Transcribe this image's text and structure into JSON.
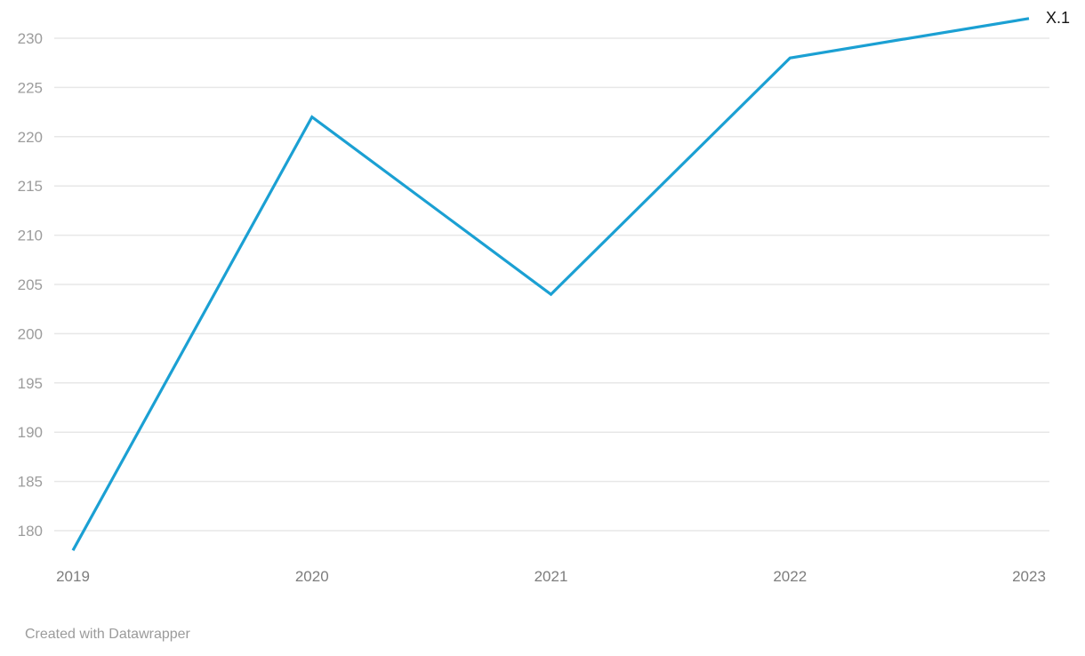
{
  "chart_data": {
    "type": "line",
    "title": "",
    "x": [
      "2019",
      "2020",
      "2021",
      "2022",
      "2023"
    ],
    "series": [
      {
        "name": "X.1",
        "values": [
          178,
          222,
          204,
          228,
          232
        ]
      }
    ],
    "yticks": [
      230,
      225,
      220,
      215,
      210,
      205,
      200,
      195,
      190,
      185,
      180
    ],
    "ylim": [
      177,
      234
    ],
    "grid": "horizontal-only",
    "legend_position": "end-of-line-label",
    "line_color": "#1ba0d3",
    "grid_color": "#e7e7e7",
    "y_label_color": "#9c9c9c",
    "x_label_color": "#7d7d7d",
    "end_label_color": "#151515"
  },
  "attribution": {
    "text": "Created with Datawrapper"
  }
}
